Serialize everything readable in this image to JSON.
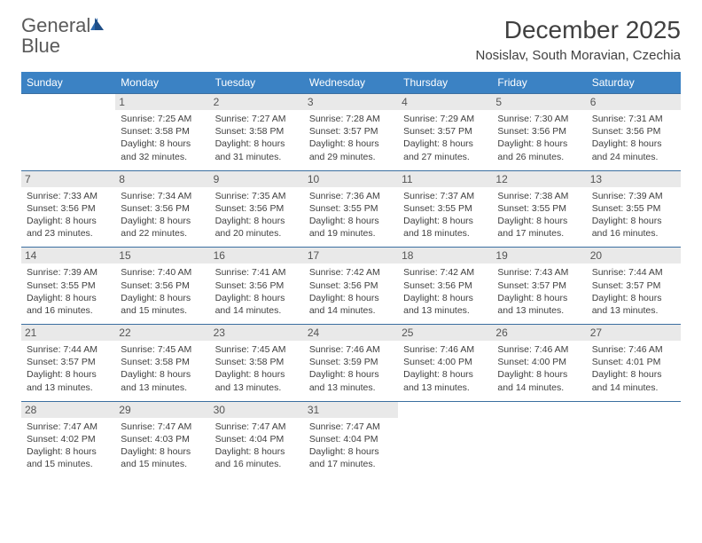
{
  "brand": {
    "part1": "General",
    "part2": "Blue"
  },
  "title": "December 2025",
  "location": "Nosislav, South Moravian, Czechia",
  "colors": {
    "header_bg": "#3b82c4",
    "header_text": "#ffffff",
    "daynum_bg": "#e9e9e9",
    "border": "#3b6fa0",
    "body_text": "#404040"
  },
  "weekdays": [
    "Sunday",
    "Monday",
    "Tuesday",
    "Wednesday",
    "Thursday",
    "Friday",
    "Saturday"
  ],
  "weeks": [
    [
      null,
      {
        "n": "1",
        "sr": "7:25 AM",
        "ss": "3:58 PM",
        "dl": "8 hours and 32 minutes."
      },
      {
        "n": "2",
        "sr": "7:27 AM",
        "ss": "3:58 PM",
        "dl": "8 hours and 31 minutes."
      },
      {
        "n": "3",
        "sr": "7:28 AM",
        "ss": "3:57 PM",
        "dl": "8 hours and 29 minutes."
      },
      {
        "n": "4",
        "sr": "7:29 AM",
        "ss": "3:57 PM",
        "dl": "8 hours and 27 minutes."
      },
      {
        "n": "5",
        "sr": "7:30 AM",
        "ss": "3:56 PM",
        "dl": "8 hours and 26 minutes."
      },
      {
        "n": "6",
        "sr": "7:31 AM",
        "ss": "3:56 PM",
        "dl": "8 hours and 24 minutes."
      }
    ],
    [
      {
        "n": "7",
        "sr": "7:33 AM",
        "ss": "3:56 PM",
        "dl": "8 hours and 23 minutes."
      },
      {
        "n": "8",
        "sr": "7:34 AM",
        "ss": "3:56 PM",
        "dl": "8 hours and 22 minutes."
      },
      {
        "n": "9",
        "sr": "7:35 AM",
        "ss": "3:56 PM",
        "dl": "8 hours and 20 minutes."
      },
      {
        "n": "10",
        "sr": "7:36 AM",
        "ss": "3:55 PM",
        "dl": "8 hours and 19 minutes."
      },
      {
        "n": "11",
        "sr": "7:37 AM",
        "ss": "3:55 PM",
        "dl": "8 hours and 18 minutes."
      },
      {
        "n": "12",
        "sr": "7:38 AM",
        "ss": "3:55 PM",
        "dl": "8 hours and 17 minutes."
      },
      {
        "n": "13",
        "sr": "7:39 AM",
        "ss": "3:55 PM",
        "dl": "8 hours and 16 minutes."
      }
    ],
    [
      {
        "n": "14",
        "sr": "7:39 AM",
        "ss": "3:55 PM",
        "dl": "8 hours and 16 minutes."
      },
      {
        "n": "15",
        "sr": "7:40 AM",
        "ss": "3:56 PM",
        "dl": "8 hours and 15 minutes."
      },
      {
        "n": "16",
        "sr": "7:41 AM",
        "ss": "3:56 PM",
        "dl": "8 hours and 14 minutes."
      },
      {
        "n": "17",
        "sr": "7:42 AM",
        "ss": "3:56 PM",
        "dl": "8 hours and 14 minutes."
      },
      {
        "n": "18",
        "sr": "7:42 AM",
        "ss": "3:56 PM",
        "dl": "8 hours and 13 minutes."
      },
      {
        "n": "19",
        "sr": "7:43 AM",
        "ss": "3:57 PM",
        "dl": "8 hours and 13 minutes."
      },
      {
        "n": "20",
        "sr": "7:44 AM",
        "ss": "3:57 PM",
        "dl": "8 hours and 13 minutes."
      }
    ],
    [
      {
        "n": "21",
        "sr": "7:44 AM",
        "ss": "3:57 PM",
        "dl": "8 hours and 13 minutes."
      },
      {
        "n": "22",
        "sr": "7:45 AM",
        "ss": "3:58 PM",
        "dl": "8 hours and 13 minutes."
      },
      {
        "n": "23",
        "sr": "7:45 AM",
        "ss": "3:58 PM",
        "dl": "8 hours and 13 minutes."
      },
      {
        "n": "24",
        "sr": "7:46 AM",
        "ss": "3:59 PM",
        "dl": "8 hours and 13 minutes."
      },
      {
        "n": "25",
        "sr": "7:46 AM",
        "ss": "4:00 PM",
        "dl": "8 hours and 13 minutes."
      },
      {
        "n": "26",
        "sr": "7:46 AM",
        "ss": "4:00 PM",
        "dl": "8 hours and 14 minutes."
      },
      {
        "n": "27",
        "sr": "7:46 AM",
        "ss": "4:01 PM",
        "dl": "8 hours and 14 minutes."
      }
    ],
    [
      {
        "n": "28",
        "sr": "7:47 AM",
        "ss": "4:02 PM",
        "dl": "8 hours and 15 minutes."
      },
      {
        "n": "29",
        "sr": "7:47 AM",
        "ss": "4:03 PM",
        "dl": "8 hours and 15 minutes."
      },
      {
        "n": "30",
        "sr": "7:47 AM",
        "ss": "4:04 PM",
        "dl": "8 hours and 16 minutes."
      },
      {
        "n": "31",
        "sr": "7:47 AM",
        "ss": "4:04 PM",
        "dl": "8 hours and 17 minutes."
      },
      null,
      null,
      null
    ]
  ],
  "labels": {
    "sunrise": "Sunrise:",
    "sunset": "Sunset:",
    "daylight": "Daylight:"
  }
}
